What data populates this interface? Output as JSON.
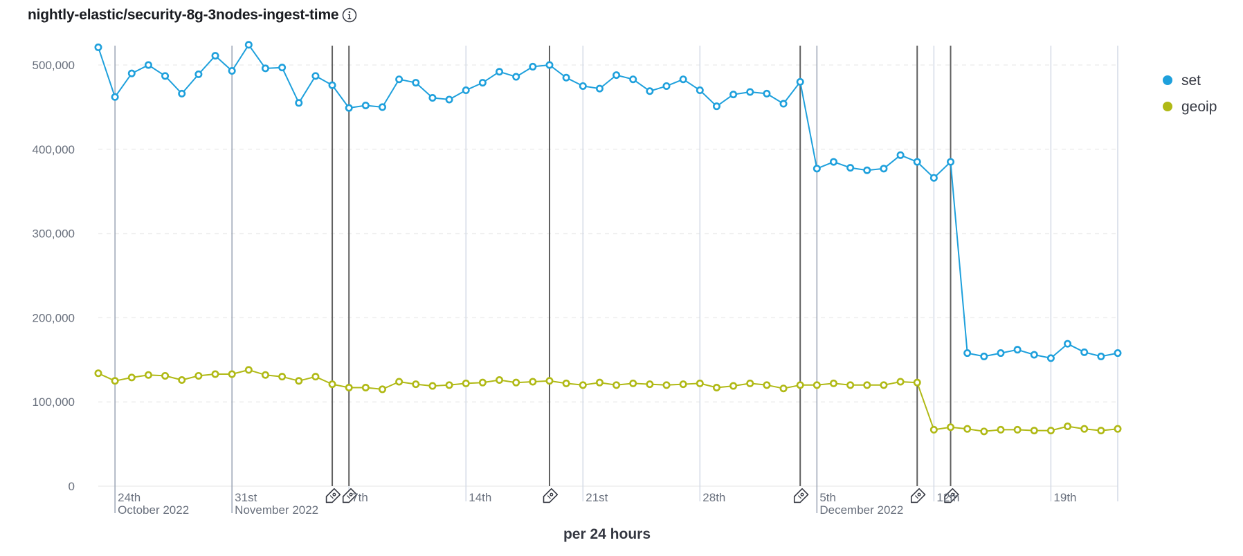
{
  "title": "nightly-elastic/security-8g-3nodes-ingest-time",
  "info_icon": "info-icon",
  "annotation_icon": "tag-icon",
  "colors": {
    "set": "#1ea0dc",
    "geoip": "#b0b915",
    "grid": "#eeeeee",
    "annotation": "#606060",
    "weekline": "#d3dae6"
  },
  "chart_data": {
    "type": "line",
    "title": "nightly-elastic/security-8g-3nodes-ingest-time",
    "xlabel": "per 24 hours",
    "ylabel": "",
    "x_start": "2022-10-23",
    "x_end": "2022-12-23",
    "ylim": [
      0,
      525000
    ],
    "yticks": [
      0,
      100000,
      200000,
      300000,
      400000,
      500000
    ],
    "ytick_labels": [
      "0",
      "100,000",
      "200,000",
      "300,000",
      "400,000",
      "500,000"
    ],
    "x_ticks": [
      {
        "date": "2022-10-24",
        "label": "24th",
        "sublabel": "October 2022"
      },
      {
        "date": "2022-10-31",
        "label": "31st",
        "sublabel": "November 2022"
      },
      {
        "date": "2022-11-07",
        "label": "7th",
        "sublabel": ""
      },
      {
        "date": "2022-11-14",
        "label": "14th",
        "sublabel": ""
      },
      {
        "date": "2022-11-21",
        "label": "21st",
        "sublabel": ""
      },
      {
        "date": "2022-11-28",
        "label": "28th",
        "sublabel": ""
      },
      {
        "date": "2022-12-05",
        "label": "5th",
        "sublabel": "December 2022"
      },
      {
        "date": "2022-12-12",
        "label": "12th",
        "sublabel": ""
      },
      {
        "date": "2022-12-19",
        "label": "19th",
        "sublabel": ""
      }
    ],
    "grid": true,
    "legend_position": "top-right",
    "annotations": [
      "2022-11-06",
      "2022-11-07",
      "2022-11-19",
      "2022-12-04",
      "2022-12-11",
      "2022-12-13"
    ],
    "series": [
      {
        "name": "set",
        "values": [
          521000,
          462000,
          490000,
          500000,
          487000,
          466000,
          489000,
          511000,
          493000,
          524000,
          496000,
          497000,
          455000,
          487000,
          476000,
          449000,
          452000,
          450000,
          483000,
          479000,
          461000,
          459000,
          470000,
          479000,
          492000,
          486000,
          498000,
          500000,
          485000,
          475000,
          472000,
          488000,
          483000,
          469000,
          475000,
          483000,
          470000,
          451000,
          465000,
          468000,
          466000,
          454000,
          480000,
          377000,
          385000,
          378000,
          375000,
          377000,
          393000,
          385000,
          366000,
          385000,
          158000,
          154000,
          158000,
          162000,
          156000,
          152000,
          169000,
          159000,
          154000,
          158000
        ]
      },
      {
        "name": "geoip",
        "values": [
          134000,
          125000,
          129000,
          132000,
          131000,
          126000,
          131000,
          133000,
          133000,
          138000,
          132000,
          130000,
          125000,
          130000,
          121000,
          117000,
          117000,
          115000,
          124000,
          121000,
          119000,
          120000,
          122000,
          123000,
          126000,
          123000,
          124000,
          125000,
          122000,
          120000,
          123000,
          120000,
          122000,
          121000,
          120000,
          121000,
          122000,
          117000,
          119000,
          122000,
          120000,
          116000,
          120000,
          120000,
          122000,
          120000,
          120000,
          120000,
          124000,
          123000,
          67000,
          70000,
          68000,
          65000,
          67000,
          67000,
          66000,
          66000,
          71000,
          68000,
          66000,
          68000
        ]
      }
    ]
  }
}
